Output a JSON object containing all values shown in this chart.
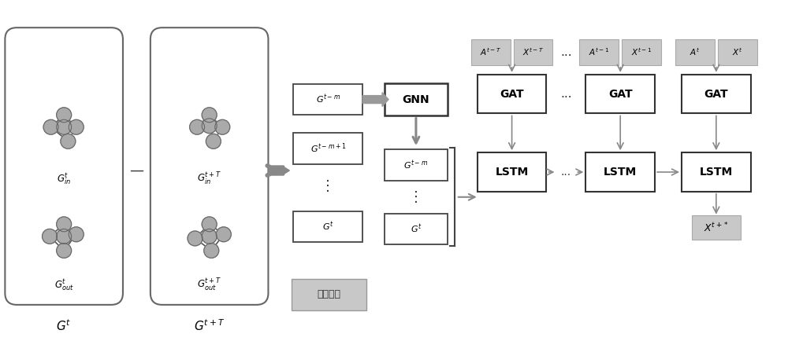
{
  "bg_color": "#ffffff",
  "node_color": "#aaaaaa",
  "node_edge_color": "#666666",
  "edge_color": "#555555",
  "box_edge_color": "#333333",
  "gray_box_color": "#c8c8c8",
  "arrow_color": "#888888",
  "graph1_label": "$G^t$",
  "graph2_label": "$G^{t+T}$",
  "gin_label1": "$G^t_{in}$",
  "gout_label1": "$G^t_{out}$",
  "gin_label2": "$G^{t+T}_{in}$",
  "gout_label2": "$G^{t+T}_{out}$",
  "gnn_label": "GNN",
  "data_missing_label": "数据缺失",
  "output_label": "$X^{t+*}$",
  "minus_label": "—"
}
